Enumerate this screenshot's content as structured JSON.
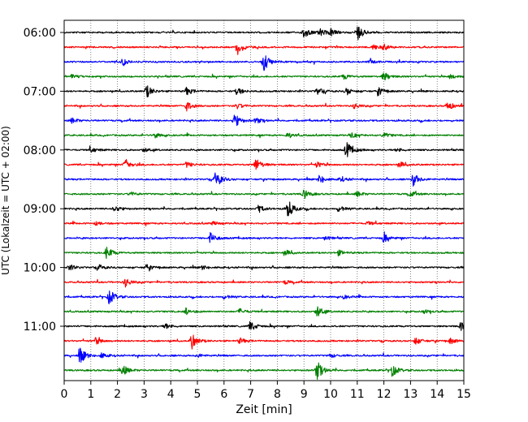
{
  "chart_data": {
    "type": "line",
    "title": "",
    "xlabel": "Zeit  [min]",
    "ylabel": "UTC (Lokalzeit = UTC + 02:00)",
    "xlim": [
      0,
      15
    ],
    "x_ticks": [
      "0",
      "1",
      "2",
      "3",
      "4",
      "5",
      "6",
      "7",
      "8",
      "9",
      "10",
      "11",
      "12",
      "13",
      "14",
      "15"
    ],
    "y_tick_labels": [
      "06:00",
      "07:00",
      "08:00",
      "09:00",
      "10:00",
      "11:00"
    ],
    "trace_interval_minutes": 15,
    "grid": "vertical dotted at each minute",
    "color_cycle": [
      "#000000",
      "#ff0000",
      "#0000ff",
      "#008000"
    ],
    "traces": [
      {
        "start": "06:00",
        "events": [
          [
            9.0,
            0.6
          ],
          [
            9.6,
            0.4
          ],
          [
            10.0,
            0.4
          ],
          [
            11.0,
            0.9
          ]
        ]
      },
      {
        "start": "06:15",
        "events": [
          [
            6.5,
            0.8
          ],
          [
            11.6,
            0.3
          ],
          [
            12.0,
            0.3
          ]
        ]
      },
      {
        "start": "06:30",
        "events": [
          [
            2.2,
            0.3
          ],
          [
            7.5,
            1.0
          ],
          [
            11.5,
            0.2
          ]
        ]
      },
      {
        "start": "06:45",
        "events": [
          [
            0.3,
            0.2
          ],
          [
            10.5,
            0.3
          ],
          [
            12.0,
            0.5
          ],
          [
            14.5,
            0.3
          ]
        ]
      },
      {
        "start": "07:00",
        "events": [
          [
            3.1,
            0.7
          ],
          [
            4.6,
            0.4
          ],
          [
            6.5,
            0.4
          ],
          [
            9.5,
            0.4
          ],
          [
            10.6,
            0.4
          ],
          [
            11.8,
            0.4
          ]
        ]
      },
      {
        "start": "07:15",
        "events": [
          [
            4.6,
            0.5
          ],
          [
            6.5,
            0.3
          ],
          [
            10.9,
            0.3
          ],
          [
            14.4,
            0.5
          ]
        ]
      },
      {
        "start": "07:30",
        "events": [
          [
            0.3,
            0.3
          ],
          [
            6.4,
            0.8
          ],
          [
            7.2,
            0.3
          ]
        ]
      },
      {
        "start": "07:45",
        "events": [
          [
            3.4,
            0.3
          ],
          [
            8.4,
            0.3
          ],
          [
            10.8,
            0.3
          ],
          [
            12.0,
            0.3
          ]
        ]
      },
      {
        "start": "08:00",
        "events": [
          [
            1.0,
            0.3
          ],
          [
            3.0,
            0.2
          ],
          [
            10.6,
            0.9
          ],
          [
            12.5,
            0.2
          ]
        ]
      },
      {
        "start": "08:15",
        "events": [
          [
            2.3,
            0.6
          ],
          [
            4.6,
            0.3
          ],
          [
            7.2,
            0.7
          ],
          [
            9.5,
            0.3
          ],
          [
            12.6,
            0.3
          ]
        ]
      },
      {
        "start": "08:30",
        "events": [
          [
            5.7,
            0.9
          ],
          [
            9.6,
            0.5
          ],
          [
            10.4,
            0.3
          ],
          [
            13.1,
            0.7
          ]
        ]
      },
      {
        "start": "08:45",
        "events": [
          [
            2.5,
            0.2
          ],
          [
            9.0,
            0.5
          ],
          [
            11.0,
            0.3
          ],
          [
            13.0,
            0.3
          ]
        ]
      },
      {
        "start": "09:00",
        "events": [
          [
            1.9,
            0.4
          ],
          [
            7.3,
            0.4
          ],
          [
            8.4,
            1.0
          ],
          [
            10.3,
            0.3
          ]
        ]
      },
      {
        "start": "09:15",
        "events": [
          [
            1.2,
            0.2
          ],
          [
            5.6,
            0.2
          ],
          [
            11.4,
            0.2
          ]
        ]
      },
      {
        "start": "09:30",
        "events": [
          [
            5.5,
            0.6
          ],
          [
            9.8,
            0.2
          ],
          [
            12.0,
            0.5
          ]
        ]
      },
      {
        "start": "09:45",
        "events": [
          [
            1.6,
            0.7
          ],
          [
            8.3,
            0.3
          ],
          [
            10.3,
            0.3
          ]
        ]
      },
      {
        "start": "10:00",
        "events": [
          [
            0.2,
            0.3
          ],
          [
            1.3,
            0.3
          ],
          [
            3.1,
            0.3
          ],
          [
            5.2,
            0.2
          ]
        ]
      },
      {
        "start": "10:15",
        "events": [
          [
            2.3,
            0.5
          ],
          [
            8.3,
            0.2
          ]
        ]
      },
      {
        "start": "10:30",
        "events": [
          [
            1.7,
            0.8
          ],
          [
            6.0,
            0.2
          ],
          [
            10.5,
            0.2
          ]
        ]
      },
      {
        "start": "10:45",
        "events": [
          [
            4.6,
            0.4
          ],
          [
            6.6,
            0.3
          ],
          [
            9.5,
            0.6
          ],
          [
            13.5,
            0.2
          ]
        ]
      },
      {
        "start": "11:00",
        "events": [
          [
            3.8,
            0.3
          ],
          [
            7.0,
            0.6
          ],
          [
            14.9,
            0.5
          ]
        ]
      },
      {
        "start": "11:15",
        "events": [
          [
            1.2,
            0.4
          ],
          [
            4.8,
            0.9
          ],
          [
            6.6,
            0.3
          ],
          [
            13.2,
            0.4
          ],
          [
            14.5,
            0.3
          ]
        ]
      },
      {
        "start": "11:30",
        "events": [
          [
            0.6,
            0.9
          ],
          [
            1.4,
            0.3
          ],
          [
            5.0,
            0.2
          ],
          [
            10.0,
            0.2
          ]
        ]
      },
      {
        "start": "11:45",
        "events": [
          [
            2.2,
            0.6
          ],
          [
            9.5,
            1.0
          ],
          [
            12.3,
            0.7
          ]
        ]
      }
    ]
  }
}
